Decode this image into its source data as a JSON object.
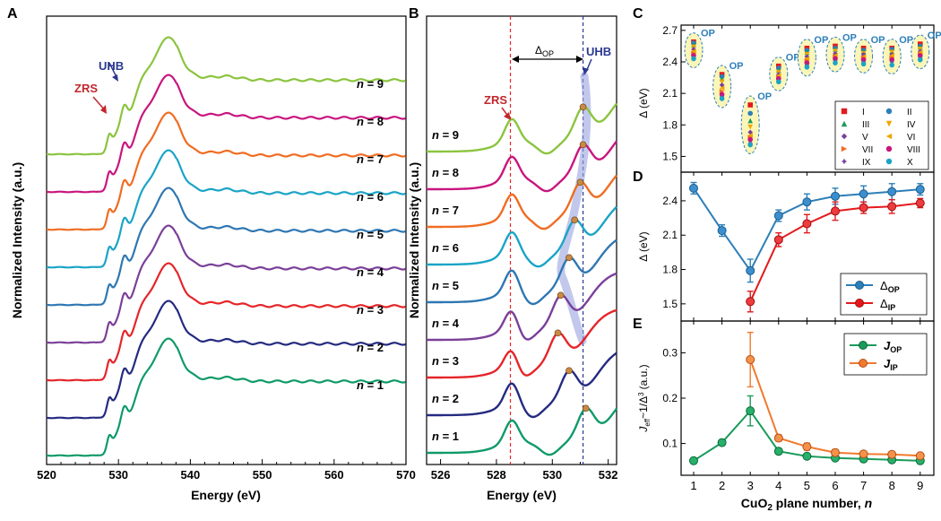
{
  "panels": {
    "A": {
      "letter": "A",
      "xlabel": "Energy (eV)",
      "ylabel": "Normalized Intensity (a.u.)",
      "xlim": [
        520,
        570
      ],
      "xticks": [
        "520",
        "530",
        "540",
        "550",
        "560",
        "570"
      ],
      "annotations": {
        "zrs": "ZRS",
        "uhb": "UHB"
      },
      "n_prefix": "n",
      "curve_labels": [
        "= 9",
        "= 8",
        "= 7",
        "= 6",
        "= 5",
        "= 4",
        "= 3",
        "= 2",
        "= 1"
      ]
    },
    "B": {
      "letter": "B",
      "xlabel": "Energy (eV)",
      "ylabel": "Normalized Intensity (a.u.)",
      "xlim": [
        525.5,
        532.3
      ],
      "xticks": [
        "526",
        "528",
        "530",
        "532"
      ],
      "delta_label": "Δ",
      "delta_sub": "OP",
      "annotations": {
        "zrs": "ZRS",
        "uhb": "UHB"
      },
      "n_prefix": "n",
      "curve_labels": [
        "= 9",
        "= 8",
        "= 7",
        "= 6",
        "= 5",
        "= 4",
        "= 3",
        "= 2",
        "= 1"
      ],
      "zrs_energy": 528.5,
      "uhb_energy": 531.1
    },
    "C": {
      "letter": "C",
      "ylabel": "Δ (eV)",
      "ylim": [
        1.35,
        2.75
      ],
      "yticks": [
        "1.5",
        "1.8",
        "2.1",
        "2.4",
        "2.7"
      ],
      "op_label": "OP",
      "legend": [
        "I",
        "II",
        "III",
        "IV",
        "V",
        "VI",
        "VII",
        "VIII",
        "IX",
        "X"
      ]
    },
    "D": {
      "letter": "D",
      "ylabel": "Δ (eV)",
      "ylim": [
        1.35,
        2.65
      ],
      "yticks": [
        "1.5",
        "1.8",
        "2.1",
        "2.4"
      ],
      "legend": [
        {
          "main": "Δ",
          "sub": "OP"
        },
        {
          "main": "Δ",
          "sub": "IP"
        }
      ]
    },
    "E": {
      "letter": "E",
      "ylabel": "J",
      "ylabel_sub": "eff",
      "ylabel_rest": "~1/Δ",
      "ylabel_sup": "3",
      "ylabel_unit": "(a.u.)",
      "ylim": [
        0.03,
        0.37
      ],
      "yticks": [
        "0.1",
        "0.2",
        "0.3"
      ],
      "legend": [
        {
          "main": "J",
          "sub": "OP"
        },
        {
          "main": "J",
          "sub": "IP"
        }
      ],
      "xlabel_pre": "CuO",
      "xlabel_sub": "2",
      "xlabel_post": " plane number, ",
      "xlabel_n": "n",
      "xticks": [
        "1",
        "2",
        "3",
        "4",
        "5",
        "6",
        "7",
        "8",
        "9"
      ]
    }
  },
  "colors": {
    "n1": "#0f9a68",
    "n2": "#242a80",
    "n3": "#e52529",
    "n4": "#7b3f98",
    "n5": "#2e77b2",
    "n6": "#1aa4c6",
    "n7": "#f06c22",
    "n8": "#c8167f",
    "n9": "#8bc43f",
    "op_blue": "#2c7fb8",
    "ip_red": "#e31a1c",
    "jop_green": "#1a9a5a",
    "jip_orange": "#f07a2e",
    "dark_red": "#c1272d",
    "dark_blue": "#2b3990"
  },
  "chart_data": [
    {
      "panel": "D",
      "type": "line",
      "x": [
        1,
        2,
        3,
        4,
        5,
        6,
        7,
        8,
        9
      ],
      "series": [
        {
          "name": "Δ OP",
          "values": [
            2.51,
            2.14,
            1.79,
            2.27,
            2.39,
            2.44,
            2.46,
            2.48,
            2.5
          ],
          "errors": [
            0.05,
            0.05,
            0.1,
            0.05,
            0.07,
            0.07,
            0.07,
            0.07,
            0.05
          ]
        },
        {
          "name": "Δ IP",
          "values": [
            null,
            null,
            1.52,
            2.06,
            2.2,
            2.31,
            2.34,
            2.35,
            2.38
          ],
          "errors": [
            0,
            0,
            0.09,
            0.06,
            0.08,
            0.08,
            0.05,
            0.06,
            0.04
          ]
        }
      ],
      "ylabel": "Δ (eV)",
      "ylim": [
        1.35,
        2.65
      ]
    },
    {
      "panel": "E",
      "type": "line",
      "x": [
        1,
        2,
        3,
        4,
        5,
        6,
        7,
        8,
        9
      ],
      "series": [
        {
          "name": "J OP",
          "values": [
            0.062,
            0.102,
            0.172,
            0.083,
            0.072,
            0.068,
            0.066,
            0.064,
            0.062
          ],
          "errors": [
            0.004,
            0.005,
            0.033,
            0.006,
            0.005,
            0.004,
            0.004,
            0.004,
            0.004
          ]
        },
        {
          "name": "J IP",
          "values": [
            null,
            null,
            0.285,
            0.112,
            0.093,
            0.08,
            0.077,
            0.076,
            0.073
          ],
          "errors": [
            0,
            0,
            0.06,
            0.007,
            0.008,
            0.007,
            0.006,
            0.006,
            0.005
          ]
        }
      ],
      "xlabel": "CuO2 plane number, n",
      "ylabel": "Jeff ~1/Δ3 (a.u.)",
      "ylim": [
        0.03,
        0.37
      ]
    },
    {
      "panel": "C",
      "type": "scatter",
      "x": [
        1,
        2,
        3,
        4,
        5,
        6,
        7,
        8,
        9
      ],
      "series": [
        {
          "name": "I",
          "values": [
            2.59,
            2.28,
            1.99,
            2.36,
            2.53,
            2.55,
            2.53,
            2.53,
            2.57
          ]
        },
        {
          "name": "II",
          "values": [
            2.58,
            2.26,
            1.91,
            2.34,
            2.51,
            2.53,
            2.51,
            2.52,
            2.55
          ]
        },
        {
          "name": "III",
          "values": [
            2.56,
            2.24,
            1.84,
            2.32,
            2.49,
            2.52,
            2.5,
            2.5,
            2.54
          ]
        },
        {
          "name": "IV",
          "values": [
            2.54,
            2.21,
            1.78,
            2.3,
            2.47,
            2.5,
            2.48,
            2.49,
            2.52
          ]
        },
        {
          "name": "V",
          "values": [
            2.52,
            2.18,
            1.73,
            2.28,
            2.45,
            2.48,
            2.47,
            2.47,
            2.5
          ]
        },
        {
          "name": "VI",
          "values": [
            2.5,
            2.15,
            1.7,
            2.27,
            2.43,
            2.46,
            2.45,
            2.46,
            2.49
          ]
        },
        {
          "name": "VII",
          "values": [
            2.48,
            2.12,
            1.68,
            2.25,
            2.41,
            2.45,
            2.44,
            2.44,
            2.47
          ]
        },
        {
          "name": "VIII",
          "values": [
            2.46,
            2.09,
            1.66,
            2.24,
            2.39,
            2.43,
            2.42,
            2.42,
            2.46
          ]
        },
        {
          "name": "IX",
          "values": [
            2.44,
            2.07,
            1.63,
            2.22,
            2.37,
            2.41,
            2.4,
            2.4,
            2.44
          ]
        },
        {
          "name": "X",
          "values": [
            2.43,
            2.05,
            1.61,
            2.21,
            2.35,
            2.39,
            2.38,
            2.37,
            2.42
          ]
        }
      ],
      "ylabel": "Δ (eV)",
      "ylim": [
        1.35,
        2.75
      ]
    }
  ]
}
